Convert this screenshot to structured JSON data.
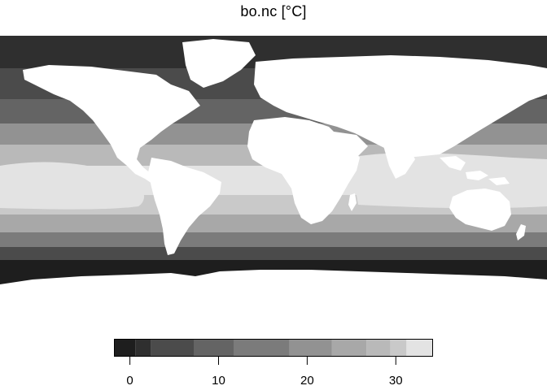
{
  "map": {
    "title": "bo.nc [°C]",
    "variable": "bo.nc",
    "unit": "°C",
    "projection": "longitude-latitude grid",
    "land_color": "#ffffff",
    "description_of_field": "filled contour bands of ocean temperature"
  },
  "legend": {
    "type": "continuous color key",
    "range": [
      -1.8,
      34.2
    ],
    "breaks": [
      -1.8,
      0.6,
      2.4,
      7.2,
      11.7,
      18.0,
      22.8,
      26.7,
      29.4,
      31.2,
      34.2
    ],
    "band_colors": [
      "#1e1e1e",
      "#2f2f2f",
      "#4b4b4b",
      "#646464",
      "#7b7b7b",
      "#929292",
      "#a8a8a8",
      "#b9b9b9",
      "#c9c9c9",
      "#e3e3e3"
    ],
    "ticks": [
      {
        "value": 0,
        "label": "0"
      },
      {
        "value": 10,
        "label": "10"
      },
      {
        "value": 20,
        "label": "20"
      },
      {
        "value": 30,
        "label": "30"
      }
    ]
  }
}
